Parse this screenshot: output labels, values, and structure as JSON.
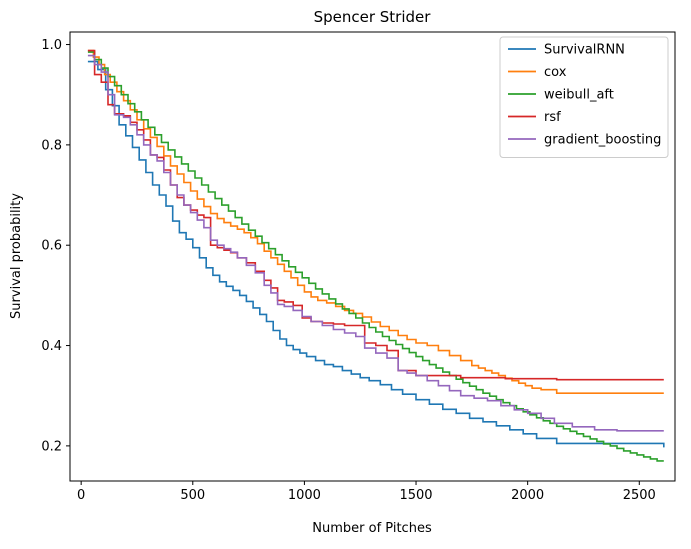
{
  "chart_data": {
    "type": "line",
    "step": true,
    "title": "Spencer Strider",
    "xlabel": "Number of Pitches",
    "ylabel": "Survival probability",
    "xlim": [
      -50,
      2660
    ],
    "ylim": [
      0.13,
      1.025
    ],
    "xticks": [
      0,
      500,
      1000,
      1500,
      2000,
      2500
    ],
    "yticks": [
      0.2,
      0.4,
      0.6,
      0.8,
      1.0
    ],
    "xtick_labels": [
      "0",
      "500",
      "1000",
      "1500",
      "2000",
      "2500"
    ],
    "ytick_labels": [
      "0.2",
      "0.4",
      "0.6",
      "0.8",
      "1.0"
    ],
    "grid": false,
    "legend_position": "top-right",
    "series": [
      {
        "name": "SurvivalRNN",
        "color": "#1f77b4",
        "x": [
          30,
          75,
          110,
          140,
          170,
          200,
          230,
          260,
          290,
          320,
          350,
          380,
          410,
          440,
          470,
          500,
          530,
          560,
          590,
          620,
          650,
          680,
          710,
          740,
          770,
          800,
          830,
          860,
          890,
          920,
          950,
          980,
          1010,
          1050,
          1090,
          1130,
          1170,
          1210,
          1250,
          1290,
          1340,
          1390,
          1440,
          1500,
          1560,
          1620,
          1680,
          1740,
          1800,
          1860,
          1920,
          1980,
          2040,
          2130,
          2610
        ],
        "y": [
          0.966,
          0.95,
          0.91,
          0.878,
          0.84,
          0.818,
          0.795,
          0.77,
          0.745,
          0.72,
          0.7,
          0.678,
          0.648,
          0.625,
          0.612,
          0.595,
          0.575,
          0.555,
          0.54,
          0.527,
          0.518,
          0.51,
          0.5,
          0.488,
          0.475,
          0.462,
          0.448,
          0.43,
          0.413,
          0.4,
          0.392,
          0.385,
          0.378,
          0.37,
          0.362,
          0.358,
          0.35,
          0.343,
          0.336,
          0.33,
          0.322,
          0.312,
          0.303,
          0.292,
          0.283,
          0.273,
          0.265,
          0.255,
          0.248,
          0.24,
          0.232,
          0.224,
          0.215,
          0.205,
          0.197
        ]
      },
      {
        "name": "cox",
        "color": "#ff7f0e",
        "x": [
          30,
          55,
          80,
          105,
          130,
          160,
          190,
          220,
          250,
          280,
          310,
          340,
          370,
          400,
          430,
          460,
          490,
          520,
          550,
          580,
          610,
          640,
          670,
          700,
          730,
          760,
          790,
          820,
          850,
          880,
          910,
          940,
          970,
          1000,
          1030,
          1060,
          1100,
          1140,
          1180,
          1220,
          1260,
          1300,
          1340,
          1380,
          1420,
          1460,
          1500,
          1550,
          1600,
          1650,
          1700,
          1750,
          1780,
          1810,
          1840,
          1870,
          1900,
          1930,
          1960,
          1990,
          2020,
          2060,
          2130,
          2610
        ],
        "y": [
          0.988,
          0.975,
          0.96,
          0.94,
          0.925,
          0.906,
          0.888,
          0.87,
          0.85,
          0.832,
          0.815,
          0.797,
          0.778,
          0.758,
          0.742,
          0.725,
          0.708,
          0.692,
          0.677,
          0.663,
          0.653,
          0.645,
          0.638,
          0.632,
          0.625,
          0.615,
          0.603,
          0.588,
          0.575,
          0.562,
          0.548,
          0.535,
          0.52,
          0.507,
          0.497,
          0.49,
          0.485,
          0.478,
          0.47,
          0.464,
          0.457,
          0.447,
          0.438,
          0.43,
          0.42,
          0.412,
          0.405,
          0.4,
          0.39,
          0.38,
          0.37,
          0.36,
          0.355,
          0.35,
          0.345,
          0.34,
          0.335,
          0.33,
          0.325,
          0.32,
          0.315,
          0.312,
          0.305,
          0.305
        ]
      },
      {
        "name": "weibull_aft",
        "color": "#2ca02c",
        "x": [
          30,
          60,
          90,
          120,
          150,
          180,
          210,
          240,
          270,
          300,
          330,
          360,
          390,
          420,
          450,
          480,
          510,
          540,
          570,
          600,
          630,
          660,
          690,
          720,
          750,
          780,
          810,
          840,
          870,
          900,
          930,
          960,
          990,
          1020,
          1050,
          1080,
          1110,
          1140,
          1170,
          1200,
          1230,
          1260,
          1290,
          1320,
          1350,
          1380,
          1410,
          1440,
          1470,
          1500,
          1530,
          1560,
          1590,
          1620,
          1650,
          1680,
          1710,
          1740,
          1770,
          1800,
          1830,
          1860,
          1890,
          1920,
          1950,
          1980,
          2010,
          2040,
          2070,
          2100,
          2130,
          2160,
          2190,
          2220,
          2250,
          2280,
          2310,
          2340,
          2370,
          2400,
          2430,
          2460,
          2490,
          2520,
          2550,
          2580,
          2610
        ],
        "y": [
          0.985,
          0.97,
          0.953,
          0.936,
          0.918,
          0.9,
          0.882,
          0.866,
          0.85,
          0.835,
          0.82,
          0.805,
          0.79,
          0.776,
          0.762,
          0.748,
          0.734,
          0.72,
          0.706,
          0.693,
          0.68,
          0.668,
          0.655,
          0.642,
          0.63,
          0.618,
          0.605,
          0.593,
          0.581,
          0.569,
          0.557,
          0.546,
          0.535,
          0.524,
          0.513,
          0.503,
          0.493,
          0.483,
          0.473,
          0.464,
          0.455,
          0.445,
          0.436,
          0.427,
          0.418,
          0.41,
          0.402,
          0.394,
          0.386,
          0.378,
          0.37,
          0.362,
          0.355,
          0.347,
          0.34,
          0.333,
          0.326,
          0.319,
          0.312,
          0.305,
          0.299,
          0.292,
          0.286,
          0.28,
          0.274,
          0.268,
          0.262,
          0.256,
          0.25,
          0.245,
          0.239,
          0.234,
          0.229,
          0.224,
          0.219,
          0.214,
          0.209,
          0.204,
          0.2,
          0.195,
          0.19,
          0.186,
          0.182,
          0.178,
          0.174,
          0.17,
          0.17
        ]
      },
      {
        "name": "rsf",
        "color": "#d62728",
        "x": [
          30,
          60,
          90,
          120,
          150,
          190,
          220,
          250,
          280,
          310,
          340,
          370,
          400,
          430,
          460,
          490,
          520,
          550,
          580,
          610,
          640,
          670,
          700,
          740,
          780,
          820,
          850,
          880,
          910,
          950,
          990,
          1030,
          1080,
          1130,
          1180,
          1230,
          1270,
          1320,
          1370,
          1420,
          1500,
          1600,
          1700,
          1800,
          1900,
          2000,
          2130,
          2610
        ],
        "y": [
          0.988,
          0.94,
          0.925,
          0.88,
          0.862,
          0.858,
          0.845,
          0.83,
          0.81,
          0.78,
          0.775,
          0.75,
          0.72,
          0.695,
          0.68,
          0.67,
          0.66,
          0.655,
          0.6,
          0.595,
          0.59,
          0.585,
          0.575,
          0.565,
          0.548,
          0.53,
          0.515,
          0.49,
          0.487,
          0.48,
          0.455,
          0.448,
          0.445,
          0.443,
          0.44,
          0.44,
          0.405,
          0.4,
          0.39,
          0.35,
          0.34,
          0.34,
          0.336,
          0.336,
          0.334,
          0.334,
          0.332,
          0.332
        ]
      },
      {
        "name": "gradient_boosting",
        "color": "#9467bd",
        "x": [
          30,
          60,
          90,
          120,
          150,
          190,
          220,
          250,
          280,
          310,
          340,
          370,
          400,
          430,
          460,
          490,
          520,
          550,
          580,
          610,
          640,
          670,
          700,
          740,
          780,
          820,
          850,
          880,
          910,
          950,
          990,
          1030,
          1080,
          1130,
          1180,
          1230,
          1270,
          1320,
          1370,
          1420,
          1460,
          1500,
          1550,
          1600,
          1650,
          1700,
          1760,
          1820,
          1880,
          1940,
          2000,
          2060,
          2120,
          2200,
          2300,
          2400,
          2500,
          2610
        ],
        "y": [
          0.978,
          0.96,
          0.945,
          0.9,
          0.86,
          0.855,
          0.84,
          0.82,
          0.8,
          0.78,
          0.768,
          0.745,
          0.72,
          0.7,
          0.68,
          0.665,
          0.65,
          0.635,
          0.61,
          0.6,
          0.593,
          0.586,
          0.575,
          0.56,
          0.545,
          0.52,
          0.505,
          0.482,
          0.478,
          0.47,
          0.458,
          0.448,
          0.44,
          0.432,
          0.425,
          0.418,
          0.395,
          0.385,
          0.375,
          0.35,
          0.345,
          0.34,
          0.33,
          0.32,
          0.31,
          0.3,
          0.295,
          0.29,
          0.28,
          0.272,
          0.265,
          0.255,
          0.245,
          0.238,
          0.232,
          0.23,
          0.23,
          0.23
        ]
      }
    ]
  }
}
